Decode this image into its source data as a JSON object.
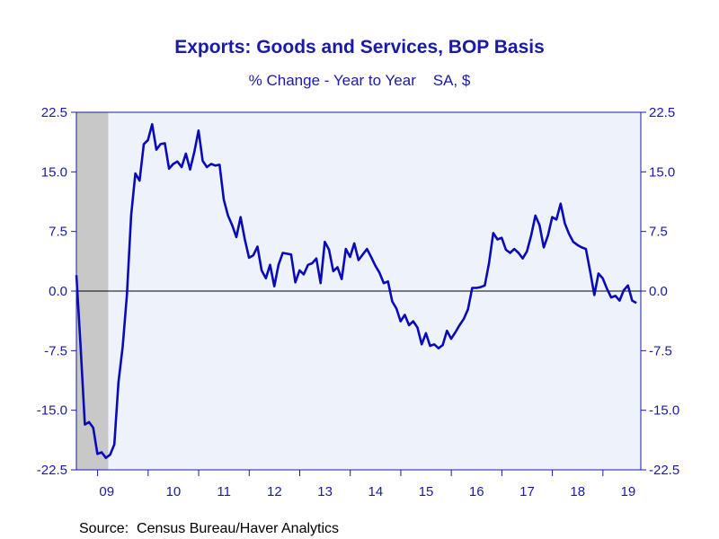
{
  "chart_data": {
    "type": "line",
    "title": "Exports: Goods and Services, BOP Basis",
    "subtitle": "% Change - Year to Year    SA, $",
    "source": "Source:  Census Bureau/Haver Analytics",
    "ylim": [
      -22.5,
      22.5
    ],
    "yticks": [
      "22.5",
      "15.0",
      "7.5",
      "0.0",
      "-7.5",
      "-15.0",
      "-22.5"
    ],
    "xlim": [
      2008.58,
      2019.75
    ],
    "xticks": [
      {
        "label": "09",
        "year": 2009
      },
      {
        "label": "10",
        "year": 2010
      },
      {
        "label": "11",
        "year": 2011
      },
      {
        "label": "12",
        "year": 2012
      },
      {
        "label": "13",
        "year": 2013
      },
      {
        "label": "14",
        "year": 2014
      },
      {
        "label": "15",
        "year": 2015
      },
      {
        "label": "16",
        "year": 2016
      },
      {
        "label": "17",
        "year": 2017
      },
      {
        "label": "18",
        "year": 2018
      },
      {
        "label": "19",
        "year": 2019
      }
    ],
    "recession": {
      "start": 2008.58,
      "end": 2009.21
    },
    "colors": {
      "line": "#0a0ab8",
      "axis": "#1a1aa6",
      "plot_bg": "#eef3fb",
      "recession": "#c8c8c8",
      "zero_line": "#000000"
    },
    "series": [
      {
        "start_year": 2008.58,
        "step": 0.08333,
        "values": [
          2.0,
          -7.0,
          -16.8,
          -16.5,
          -17.2,
          -20.5,
          -20.3,
          -21.0,
          -20.6,
          -19.3,
          -11.5,
          -7.0,
          -0.5,
          9.5,
          14.8,
          13.9,
          18.5,
          19.0,
          21.0,
          17.8,
          18.5,
          18.6,
          15.4,
          16.0,
          16.3,
          15.6,
          17.3,
          15.3,
          17.5,
          20.2,
          16.4,
          15.6,
          16.0,
          15.8,
          15.9,
          11.5,
          9.5,
          8.3,
          6.8,
          9.3,
          6.5,
          4.2,
          4.5,
          5.6,
          2.6,
          1.6,
          3.3,
          0.6,
          3.3,
          4.8,
          4.7,
          4.6,
          1.1,
          2.6,
          2.1,
          3.3,
          3.5,
          4.1,
          1.0,
          6.2,
          5.2,
          2.5,
          3.0,
          1.5,
          5.3,
          4.3,
          6.0,
          3.9,
          4.6,
          5.3,
          4.3,
          3.2,
          2.3,
          1.0,
          1.2,
          -1.3,
          -2.2,
          -3.8,
          -3.0,
          -4.3,
          -3.8,
          -4.6,
          -6.7,
          -5.3,
          -6.9,
          -6.7,
          -7.2,
          -6.8,
          -5.0,
          -6.0,
          -5.2,
          -4.3,
          -3.5,
          -2.3,
          0.4,
          0.4,
          0.5,
          0.7,
          3.5,
          7.3,
          6.5,
          6.7,
          5.2,
          4.8,
          5.3,
          4.8,
          4.1,
          5.0,
          7.0,
          9.5,
          8.3,
          5.5,
          7.0,
          9.3,
          9.0,
          11.0,
          8.5,
          7.2,
          6.2,
          5.8,
          5.5,
          5.3,
          2.5,
          -0.5,
          2.2,
          1.6,
          0.3,
          -0.8,
          -0.6,
          -1.2,
          0.1,
          0.7,
          -1.2,
          -1.5
        ]
      }
    ]
  }
}
